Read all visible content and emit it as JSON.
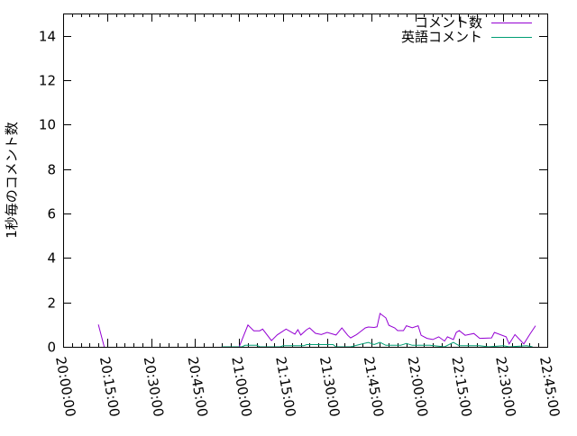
{
  "chart_data": {
    "type": "line",
    "title": "",
    "xlabel": "",
    "ylabel": "1秒毎のコメント数",
    "xlim": [
      "20:00:00",
      "22:45:00"
    ],
    "ylim": [
      0,
      15
    ],
    "x_ticks": [
      "20:00:00",
      "20:15:00",
      "20:30:00",
      "20:45:00",
      "21:00:00",
      "21:15:00",
      "21:30:00",
      "21:45:00",
      "22:00:00",
      "22:15:00",
      "22:30:00",
      "22:45:00"
    ],
    "y_ticks": [
      "0",
      "2",
      "4",
      "6",
      "8",
      "10",
      "12",
      "14"
    ],
    "grid": false,
    "legend_position": "top-right",
    "series": [
      {
        "name": "コメント数",
        "color": "#9400d3",
        "points": [
          [
            "20:12",
            1.0
          ],
          [
            "20:14",
            0
          ],
          null,
          [
            "20:54",
            0
          ],
          [
            "21:00",
            0
          ],
          [
            "21:03",
            0.98
          ],
          [
            "21:05",
            0.72
          ],
          [
            "21:07",
            0.72
          ],
          [
            "21:08",
            0.8
          ],
          [
            "21:11",
            0.28
          ],
          [
            "21:13",
            0.54
          ],
          [
            "21:16",
            0.8
          ],
          [
            "21:19",
            0.57
          ],
          [
            "21:20",
            0.77
          ],
          [
            "21:21",
            0.53
          ],
          [
            "21:23",
            0.77
          ],
          [
            "21:24",
            0.85
          ],
          [
            "21:26",
            0.61
          ],
          [
            "21:28",
            0.55
          ],
          [
            "21:30",
            0.65
          ],
          [
            "21:33",
            0.53
          ],
          [
            "21:35",
            0.85
          ],
          [
            "21:37",
            0.52
          ],
          [
            "21:38",
            0.4
          ],
          [
            "21:40",
            0.55
          ],
          [
            "21:41",
            0.65
          ],
          [
            "21:43",
            0.85
          ],
          [
            "21:44",
            0.89
          ],
          [
            "21:46",
            0.87
          ],
          [
            "21:47",
            0.9
          ],
          [
            "21:48",
            1.5
          ],
          [
            "21:50",
            1.3
          ],
          [
            "21:51",
            0.97
          ],
          [
            "21:53",
            0.85
          ],
          [
            "21:54",
            0.73
          ],
          [
            "21:56",
            0.73
          ],
          [
            "21:57",
            0.95
          ],
          [
            "21:59",
            0.86
          ],
          [
            "22:01",
            0.95
          ],
          [
            "22:02",
            0.52
          ],
          [
            "22:04",
            0.38
          ],
          [
            "22:06",
            0.33
          ],
          [
            "22:08",
            0.45
          ],
          [
            "22:10",
            0.26
          ],
          [
            "22:11",
            0.45
          ],
          [
            "22:13",
            0.33
          ],
          [
            "22:14",
            0.65
          ],
          [
            "22:15",
            0.73
          ],
          [
            "22:17",
            0.52
          ],
          [
            "22:20",
            0.6
          ],
          [
            "22:22",
            0.38
          ],
          [
            "22:26",
            0.4
          ],
          [
            "22:27",
            0.65
          ],
          [
            "22:31",
            0.45
          ],
          [
            "22:32",
            0.13
          ],
          [
            "22:34",
            0.55
          ],
          [
            "22:37",
            0.13
          ],
          [
            "22:39",
            0.55
          ],
          [
            "22:41",
            0.95
          ]
        ]
      },
      {
        "name": "英語コメント",
        "color": "#009e73",
        "points": [
          [
            "20:54",
            0
          ],
          [
            "21:01",
            0
          ],
          [
            "21:02",
            0.07
          ],
          [
            "21:06",
            0.07
          ],
          [
            "21:07",
            0
          ],
          [
            "21:14",
            0
          ],
          [
            "21:15",
            0.05
          ],
          [
            "21:22",
            0.05
          ],
          [
            "21:23",
            0.1
          ],
          [
            "21:32",
            0.1
          ],
          [
            "21:33",
            0
          ],
          [
            "21:38",
            0
          ],
          [
            "21:41",
            0.1
          ],
          [
            "21:44",
            0.2
          ],
          [
            "21:46",
            0.1
          ],
          [
            "21:48",
            0.2
          ],
          [
            "21:50",
            0.07
          ],
          [
            "21:55",
            0.07
          ],
          [
            "21:57",
            0.15
          ],
          [
            "21:59",
            0.07
          ],
          [
            "22:05",
            0.07
          ],
          [
            "22:10",
            0
          ],
          [
            "22:13",
            0.2
          ],
          [
            "22:15",
            0.05
          ],
          [
            "22:22",
            0.05
          ],
          [
            "22:25",
            0
          ],
          [
            "22:30",
            0.05
          ],
          [
            "22:32",
            0
          ],
          [
            "22:38",
            0.05
          ],
          [
            "22:40",
            0
          ]
        ]
      }
    ]
  }
}
